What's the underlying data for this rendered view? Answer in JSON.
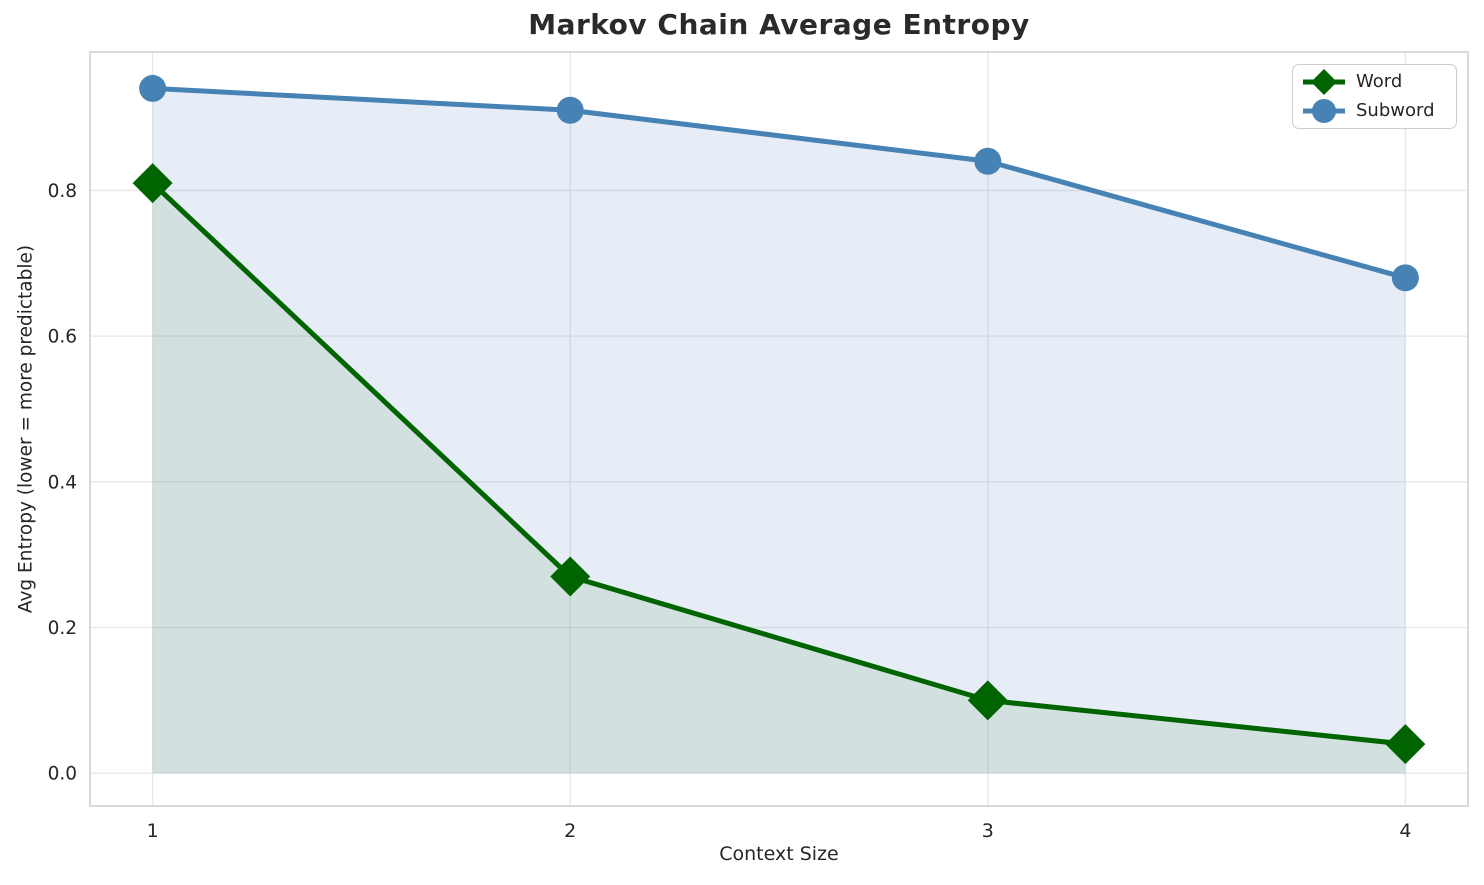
{
  "chart_data": {
    "type": "line",
    "title": "Markov Chain Average Entropy",
    "xlabel": "Context Size",
    "ylabel": "Avg Entropy (lower = more predictable)",
    "x": [
      1,
      2,
      3,
      4
    ],
    "series": [
      {
        "name": "Word",
        "values": [
          0.81,
          0.27,
          0.1,
          0.04
        ],
        "color": "#006400",
        "fill_color": "rgba(0,100,0,0.09)",
        "marker": "diamond"
      },
      {
        "name": "Subword",
        "values": [
          0.94,
          0.91,
          0.84,
          0.68
        ],
        "color": "#4682B4",
        "fill_color": "rgba(70,115,190,0.13)",
        "marker": "circle"
      }
    ],
    "xticks": [
      1,
      2,
      3,
      4
    ],
    "xtick_labels": [
      "1",
      "2",
      "3",
      "4"
    ],
    "yticks": [
      0.0,
      0.2,
      0.4,
      0.6,
      0.8
    ],
    "ytick_labels": [
      "0.0",
      "0.2",
      "0.4",
      "0.6",
      "0.8"
    ],
    "xlim": [
      0.85,
      4.15
    ],
    "ylim": [
      -0.045,
      0.99
    ],
    "grid": true,
    "fill_baseline": 0,
    "legend_position": "upper right",
    "style": {
      "grid_color": "#e7e7e7",
      "spine_color": "#cbcbcb",
      "tick_label_color": "#262626",
      "title_color": "#2a2a2a",
      "background": "#ffffff"
    }
  }
}
